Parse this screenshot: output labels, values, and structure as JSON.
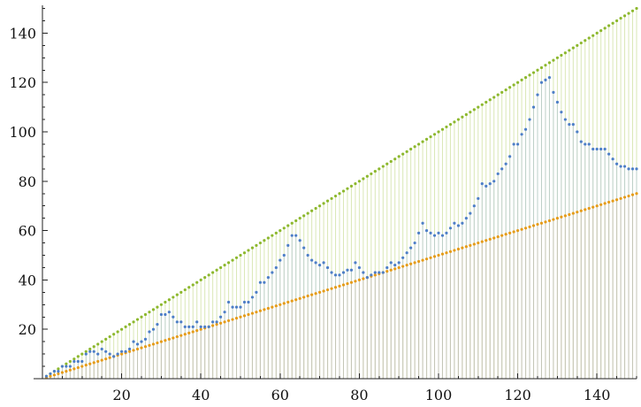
{
  "chart_data": {
    "type": "scatter",
    "title": "",
    "xlabel": "",
    "ylabel": "",
    "xlim": [
      0,
      150
    ],
    "ylim": [
      0,
      152
    ],
    "x_ticks": [
      20,
      40,
      60,
      80,
      100,
      120,
      140
    ],
    "y_ticks": [
      20,
      40,
      60,
      80,
      100,
      120,
      140
    ],
    "grid": false,
    "legend": "none",
    "drop_lines": true,
    "x": [
      1,
      2,
      3,
      4,
      5,
      6,
      7,
      8,
      9,
      10,
      11,
      12,
      13,
      14,
      15,
      16,
      17,
      18,
      19,
      20,
      21,
      22,
      23,
      24,
      25,
      26,
      27,
      28,
      29,
      30,
      31,
      32,
      33,
      34,
      35,
      36,
      37,
      38,
      39,
      40,
      41,
      42,
      43,
      44,
      45,
      46,
      47,
      48,
      49,
      50,
      51,
      52,
      53,
      54,
      55,
      56,
      57,
      58,
      59,
      60,
      61,
      62,
      63,
      64,
      65,
      66,
      67,
      68,
      69,
      70,
      71,
      72,
      73,
      74,
      75,
      76,
      77,
      78,
      79,
      80,
      81,
      82,
      83,
      84,
      85,
      86,
      87,
      88,
      89,
      90,
      91,
      92,
      93,
      94,
      95,
      96,
      97,
      98,
      99,
      100,
      101,
      102,
      103,
      104,
      105,
      106,
      107,
      108,
      109,
      110,
      111,
      112,
      113,
      114,
      115,
      116,
      117,
      118,
      119,
      120,
      121,
      122,
      123,
      124,
      125,
      126,
      127,
      128,
      129,
      130,
      131,
      132,
      133,
      134,
      135,
      136,
      137,
      138,
      139,
      140,
      141,
      142,
      143,
      144,
      145,
      146,
      147,
      148,
      149,
      150
    ],
    "series": [
      {
        "color": "#8db82e",
        "values": [
          1,
          2,
          3,
          4,
          5,
          6,
          7,
          8,
          9,
          10,
          11,
          12,
          13,
          14,
          15,
          16,
          17,
          18,
          19,
          20,
          21,
          22,
          23,
          24,
          25,
          26,
          27,
          28,
          29,
          30,
          31,
          32,
          33,
          34,
          35,
          36,
          37,
          38,
          39,
          40,
          41,
          42,
          43,
          44,
          45,
          46,
          47,
          48,
          49,
          50,
          51,
          52,
          53,
          54,
          55,
          56,
          57,
          58,
          59,
          60,
          61,
          62,
          63,
          64,
          65,
          66,
          67,
          68,
          69,
          70,
          71,
          72,
          73,
          74,
          75,
          76,
          77,
          78,
          79,
          80,
          81,
          82,
          83,
          84,
          85,
          86,
          87,
          88,
          89,
          90,
          91,
          92,
          93,
          94,
          95,
          96,
          97,
          98,
          99,
          100,
          101,
          102,
          103,
          104,
          105,
          106,
          107,
          108,
          109,
          110,
          111,
          112,
          113,
          114,
          115,
          116,
          117,
          118,
          119,
          120,
          121,
          122,
          123,
          124,
          125,
          126,
          127,
          128,
          129,
          130,
          131,
          132,
          133,
          134,
          135,
          136,
          137,
          138,
          139,
          140,
          141,
          142,
          143,
          144,
          145,
          146,
          147,
          148,
          149,
          150
        ]
      },
      {
        "color": "#e59c1a",
        "values": [
          0.5,
          1,
          1.5,
          2,
          2.5,
          3,
          3.5,
          4,
          4.5,
          5,
          5.5,
          6,
          6.5,
          7,
          7.5,
          8,
          8.5,
          9,
          9.5,
          10,
          10.5,
          11,
          11.5,
          12,
          12.5,
          13,
          13.5,
          14,
          14.5,
          15,
          15.5,
          16,
          16.5,
          17,
          17.5,
          18,
          18.5,
          19,
          19.5,
          20,
          20.5,
          21,
          21.5,
          22,
          22.5,
          23,
          23.5,
          24,
          24.5,
          25,
          25.5,
          26,
          26.5,
          27,
          27.5,
          28,
          28.5,
          29,
          29.5,
          30,
          30.5,
          31,
          31.5,
          32,
          32.5,
          33,
          33.5,
          34,
          34.5,
          35,
          35.5,
          36,
          36.5,
          37,
          37.5,
          38,
          38.5,
          39,
          39.5,
          40,
          40.5,
          41,
          41.5,
          42,
          42.5,
          43,
          43.5,
          44,
          44.5,
          45,
          45.5,
          46,
          46.5,
          47,
          47.5,
          48,
          48.5,
          49,
          49.5,
          50,
          50.5,
          51,
          51.5,
          52,
          52.5,
          53,
          53.5,
          54,
          54.5,
          55,
          55.5,
          56,
          56.5,
          57,
          57.5,
          58,
          58.5,
          59,
          59.5,
          60,
          60.5,
          61,
          61.5,
          62,
          62.5,
          63,
          63.5,
          64,
          64.5,
          65,
          65.5,
          66,
          66.5,
          67,
          67.5,
          68,
          68.5,
          69,
          69.5,
          70,
          70.5,
          71,
          71.5,
          72,
          72.5,
          73,
          73.5,
          74,
          74.5,
          75
        ]
      },
      {
        "color": "#4e7fc7",
        "values": [
          1,
          2,
          3,
          3,
          5,
          5,
          5,
          7,
          7,
          7,
          10,
          11,
          11,
          10,
          12,
          11,
          10,
          9,
          10,
          11,
          11,
          12,
          15,
          14,
          15,
          16,
          19,
          20,
          22,
          26,
          26,
          27,
          25,
          23,
          23,
          21,
          21,
          21,
          23,
          21,
          21,
          21,
          23,
          23,
          25,
          27,
          31,
          29,
          29,
          29,
          31,
          31,
          33,
          35,
          39,
          39,
          41,
          43,
          45,
          48,
          50,
          54,
          58,
          58,
          56,
          53,
          50,
          48,
          47,
          46,
          47,
          45,
          43,
          42,
          42,
          43,
          44,
          44,
          47,
          45,
          43,
          41,
          42,
          43,
          43,
          43,
          45,
          47,
          46,
          47,
          49,
          51,
          53,
          55,
          59,
          63,
          60,
          59,
          58,
          59,
          58,
          59,
          61,
          63,
          62,
          63,
          65,
          67,
          70,
          73,
          79,
          78,
          79,
          80,
          83,
          85,
          87,
          90,
          95,
          95,
          99,
          101,
          105,
          110,
          115,
          120,
          121,
          122,
          116,
          112,
          108,
          105,
          103,
          103,
          100,
          96,
          95,
          95,
          93,
          93,
          93,
          93,
          91,
          89,
          87,
          86,
          86,
          85,
          85,
          85
        ]
      }
    ]
  }
}
